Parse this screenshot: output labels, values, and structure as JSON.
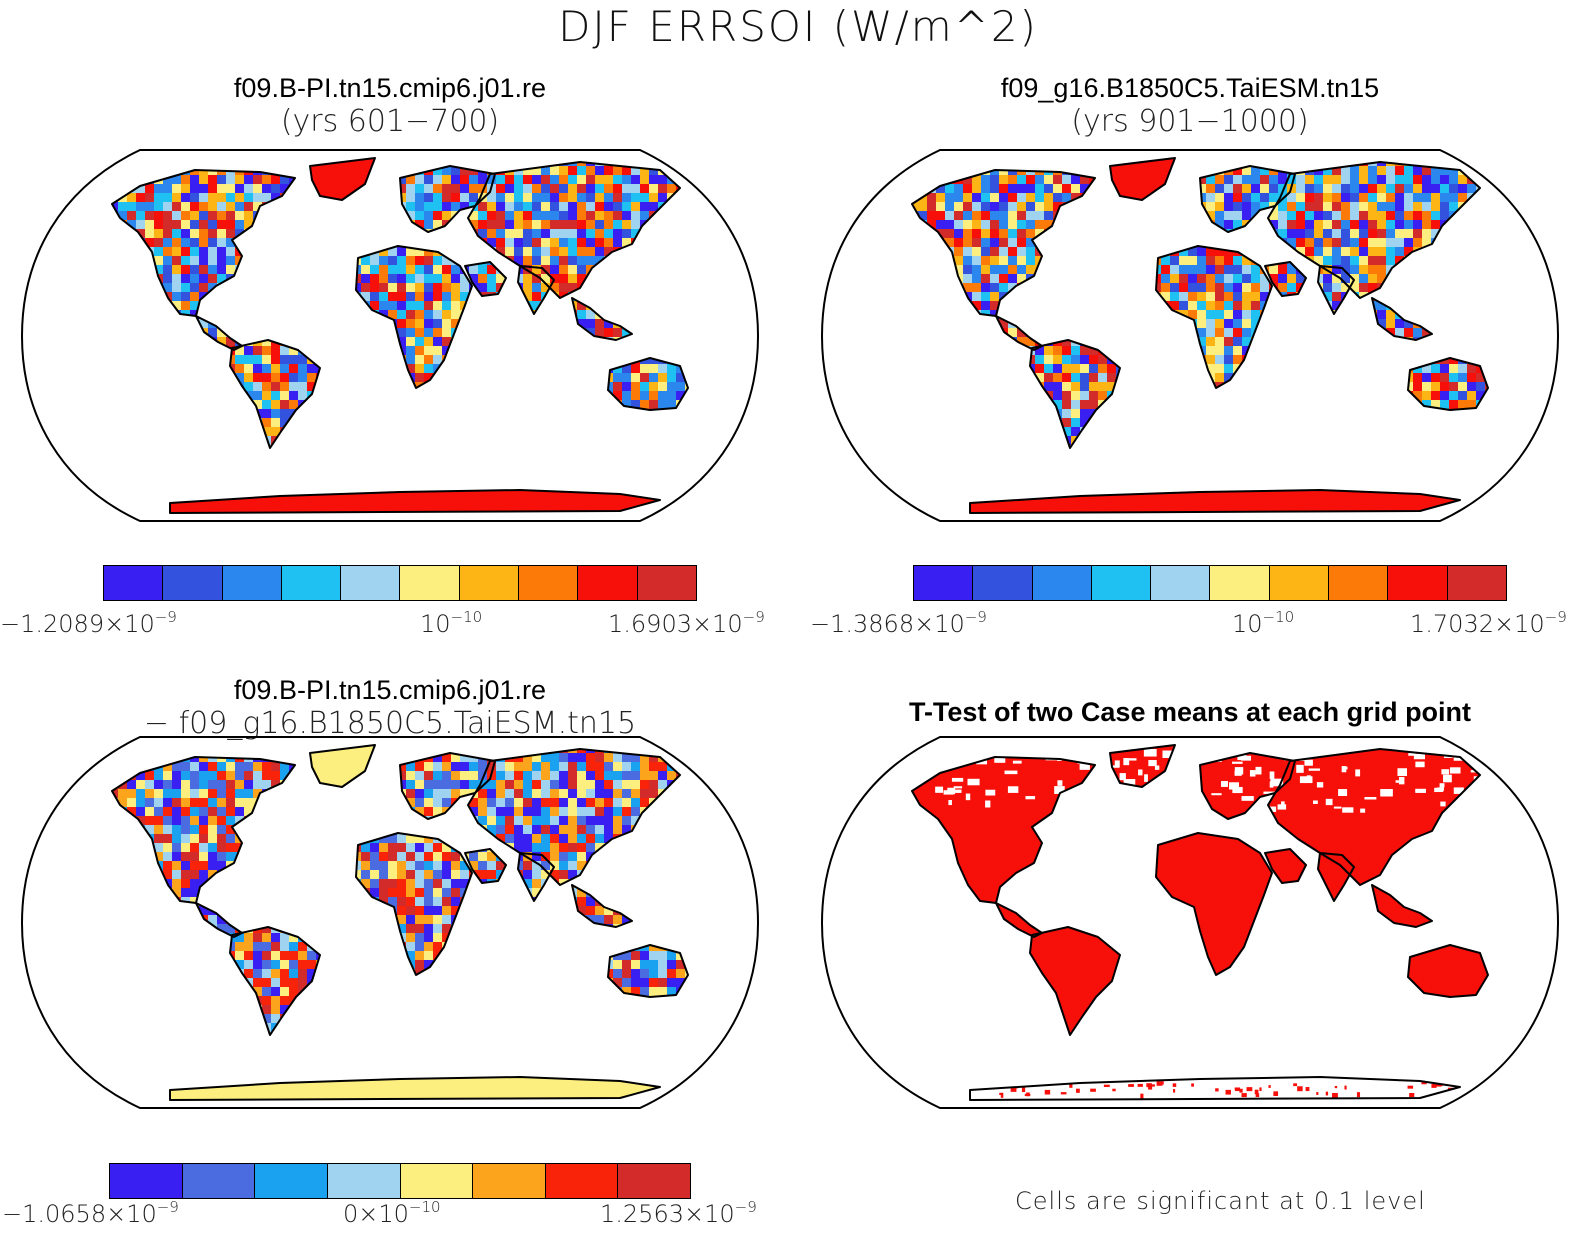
{
  "title": "DJF ERRSOI (W/m^2)",
  "panels": [
    {
      "id": "p1",
      "title_line1": "f09.B-PI.tn15.cmip6.j01.re",
      "title_line2": "(yrs 601−700)"
    },
    {
      "id": "p2",
      "title_line1": "f09_g16.B1850C5.TaiESM.tn15",
      "title_line2": "(yrs 901−1000)"
    },
    {
      "id": "p3",
      "title_line1": "f09.B-PI.tn15.cmip6.j01.re",
      "title_line2": "− f09_g16.B1850C5.TaiESM.tn15"
    },
    {
      "id": "p4",
      "title_line1": "T-Test of two Case means at each grid point",
      "title_line2": ""
    }
  ],
  "colorbars": [
    {
      "colors": [
        "#3a1ff2",
        "#3353de",
        "#2b87ee",
        "#1ec1f2",
        "#9fd3ef",
        "#fcee7f",
        "#fdb515",
        "#fb7a08",
        "#f70f0a",
        "#d32b2a"
      ],
      "min_mantissa": "−1.2089×10",
      "min_exp": "−9",
      "mid_mantissa": "10",
      "mid_exp": "−10",
      "max_mantissa": "1.6903×10",
      "max_exp": "−9"
    },
    {
      "colors": [
        "#3a1ff2",
        "#3353de",
        "#2b87ee",
        "#1ec1f2",
        "#9fd3ef",
        "#fcee7f",
        "#fdb515",
        "#fb7a08",
        "#f70f0a",
        "#d32b2a"
      ],
      "min_mantissa": "−1.3868×10",
      "min_exp": "−9",
      "mid_mantissa": "10",
      "mid_exp": "−10",
      "max_mantissa": "1.7032×10",
      "max_exp": "−9"
    },
    {
      "colors": [
        "#3a1ff2",
        "#4b6be0",
        "#1aa1f0",
        "#9fd3ef",
        "#fcee7f",
        "#fca41c",
        "#f9230a",
        "#d32b2a"
      ],
      "min_mantissa": "−1.0658×10",
      "min_exp": "−9",
      "mid_mantissa": "0×10",
      "mid_exp": "−10",
      "max_mantissa": "1.2563×10",
      "max_exp": "−9"
    }
  ],
  "footnote": "Cells are significant at 0.1 level"
}
